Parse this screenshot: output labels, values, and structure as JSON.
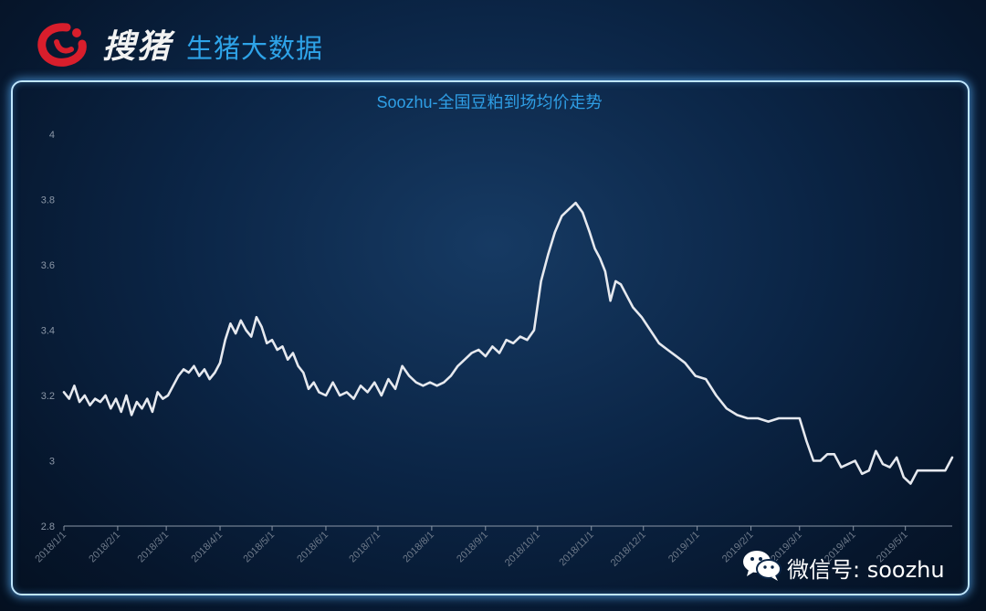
{
  "header": {
    "brand": "搜猪",
    "subbrand": "生猪大数据"
  },
  "watermark": {
    "text": "微信号: soozhu",
    "icon": "wechat-icon"
  },
  "colors": {
    "line": "#e6e9ef",
    "title": "#2f9fe6",
    "panel_border": "#bfe6ff",
    "logo_red": "#d81e2c"
  },
  "chart_data": {
    "type": "line",
    "title": "Soozhu-全国豆粕到场均价走势",
    "xlabel": "",
    "ylabel": "",
    "ylim": [
      2.8,
      4.0
    ],
    "yticks": [
      "2.8",
      "3",
      "3.2",
      "3.4",
      "3.6",
      "3.8",
      "4"
    ],
    "xlim": [
      "2018-01-01",
      "2019-05-28"
    ],
    "xticks": [
      {
        "date": "2018-01-01",
        "label": "2018/1/1"
      },
      {
        "date": "2018-02-01",
        "label": "2018/2/1"
      },
      {
        "date": "2018-03-01",
        "label": "2018/3/1"
      },
      {
        "date": "2018-04-01",
        "label": "2018/4/1"
      },
      {
        "date": "2018-05-01",
        "label": "2018/5/1"
      },
      {
        "date": "2018-06-01",
        "label": "2018/6/1"
      },
      {
        "date": "2018-07-01",
        "label": "2018/7/1"
      },
      {
        "date": "2018-08-01",
        "label": "2018/8/1"
      },
      {
        "date": "2018-09-01",
        "label": "2018/9/1"
      },
      {
        "date": "2018-10-01",
        "label": "2018/10/1"
      },
      {
        "date": "2018-11-01",
        "label": "2018/11/1"
      },
      {
        "date": "2018-12-01",
        "label": "2018/12/1"
      },
      {
        "date": "2019-01-01",
        "label": "2019/1/1"
      },
      {
        "date": "2019-02-01",
        "label": "2019/2/1"
      },
      {
        "date": "2019-03-01",
        "label": "2019/3/1"
      },
      {
        "date": "2019-04-01",
        "label": "2019/4/1"
      },
      {
        "date": "2019-05-01",
        "label": "2019/5/1"
      }
    ],
    "grid": false,
    "series": [
      {
        "x": [
          "2018-01-01",
          "2018-01-04",
          "2018-01-07",
          "2018-01-10",
          "2018-01-13",
          "2018-01-16",
          "2018-01-19",
          "2018-01-22",
          "2018-01-25",
          "2018-01-28",
          "2018-01-31",
          "2018-02-03",
          "2018-02-06",
          "2018-02-09",
          "2018-02-12",
          "2018-02-15",
          "2018-02-18",
          "2018-02-21",
          "2018-02-24",
          "2018-02-27",
          "2018-03-02",
          "2018-03-05",
          "2018-03-08",
          "2018-03-11",
          "2018-03-14",
          "2018-03-17",
          "2018-03-20",
          "2018-03-23",
          "2018-03-26",
          "2018-03-29",
          "2018-04-01",
          "2018-04-04",
          "2018-04-07",
          "2018-04-10",
          "2018-04-13",
          "2018-04-16",
          "2018-04-19",
          "2018-04-22",
          "2018-04-25",
          "2018-04-28",
          "2018-05-01",
          "2018-05-04",
          "2018-05-07",
          "2018-05-10",
          "2018-05-13",
          "2018-05-16",
          "2018-05-19",
          "2018-05-22",
          "2018-05-25",
          "2018-05-28",
          "2018-06-01",
          "2018-06-05",
          "2018-06-09",
          "2018-06-13",
          "2018-06-17",
          "2018-06-21",
          "2018-06-25",
          "2018-06-29",
          "2018-07-03",
          "2018-07-07",
          "2018-07-11",
          "2018-07-15",
          "2018-07-19",
          "2018-07-23",
          "2018-07-27",
          "2018-07-31",
          "2018-08-04",
          "2018-08-08",
          "2018-08-12",
          "2018-08-16",
          "2018-08-20",
          "2018-08-24",
          "2018-08-28",
          "2018-09-01",
          "2018-09-05",
          "2018-09-09",
          "2018-09-13",
          "2018-09-17",
          "2018-09-21",
          "2018-09-25",
          "2018-09-29",
          "2018-10-03",
          "2018-10-07",
          "2018-10-11",
          "2018-10-15",
          "2018-10-19",
          "2018-10-23",
          "2018-10-27",
          "2018-10-31",
          "2018-11-03",
          "2018-11-06",
          "2018-11-09",
          "2018-11-12",
          "2018-11-15",
          "2018-11-18",
          "2018-11-21",
          "2018-11-25",
          "2018-11-30",
          "2018-12-05",
          "2018-12-10",
          "2018-12-15",
          "2018-12-20",
          "2018-12-25",
          "2018-12-31",
          "2019-01-06",
          "2019-01-12",
          "2019-01-18",
          "2019-01-24",
          "2019-01-30",
          "2019-02-05",
          "2019-02-11",
          "2019-02-17",
          "2019-02-23",
          "2019-03-01",
          "2019-03-05",
          "2019-03-09",
          "2019-03-13",
          "2019-03-17",
          "2019-03-21",
          "2019-03-25",
          "2019-03-29",
          "2019-04-02",
          "2019-04-06",
          "2019-04-10",
          "2019-04-14",
          "2019-04-18",
          "2019-04-22",
          "2019-04-26",
          "2019-04-30",
          "2019-05-04",
          "2019-05-08",
          "2019-05-12",
          "2019-05-16",
          "2019-05-20",
          "2019-05-24",
          "2019-05-28"
        ],
        "values": [
          3.21,
          3.19,
          3.23,
          3.18,
          3.2,
          3.17,
          3.19,
          3.18,
          3.2,
          3.16,
          3.19,
          3.15,
          3.2,
          3.14,
          3.18,
          3.16,
          3.19,
          3.15,
          3.21,
          3.19,
          3.2,
          3.23,
          3.26,
          3.28,
          3.27,
          3.29,
          3.26,
          3.28,
          3.25,
          3.27,
          3.3,
          3.37,
          3.42,
          3.39,
          3.43,
          3.4,
          3.38,
          3.44,
          3.41,
          3.36,
          3.37,
          3.34,
          3.35,
          3.31,
          3.33,
          3.29,
          3.27,
          3.22,
          3.24,
          3.21,
          3.2,
          3.24,
          3.2,
          3.21,
          3.19,
          3.23,
          3.21,
          3.24,
          3.2,
          3.25,
          3.22,
          3.29,
          3.26,
          3.24,
          3.23,
          3.24,
          3.23,
          3.24,
          3.26,
          3.29,
          3.31,
          3.33,
          3.34,
          3.32,
          3.35,
          3.33,
          3.37,
          3.36,
          3.38,
          3.37,
          3.4,
          3.55,
          3.63,
          3.7,
          3.75,
          3.77,
          3.79,
          3.76,
          3.7,
          3.65,
          3.62,
          3.58,
          3.49,
          3.55,
          3.54,
          3.51,
          3.47,
          3.44,
          3.4,
          3.36,
          3.34,
          3.32,
          3.3,
          3.26,
          3.25,
          3.2,
          3.16,
          3.14,
          3.13,
          3.13,
          3.12,
          3.13,
          3.13,
          3.13,
          3.06,
          3.0,
          3.0,
          3.02,
          3.02,
          2.98,
          2.99,
          3.0,
          2.96,
          2.97,
          3.03,
          2.99,
          2.98,
          3.01,
          2.95,
          2.93,
          2.97,
          2.97,
          2.97,
          2.97,
          2.97,
          3.01
        ]
      }
    ]
  }
}
